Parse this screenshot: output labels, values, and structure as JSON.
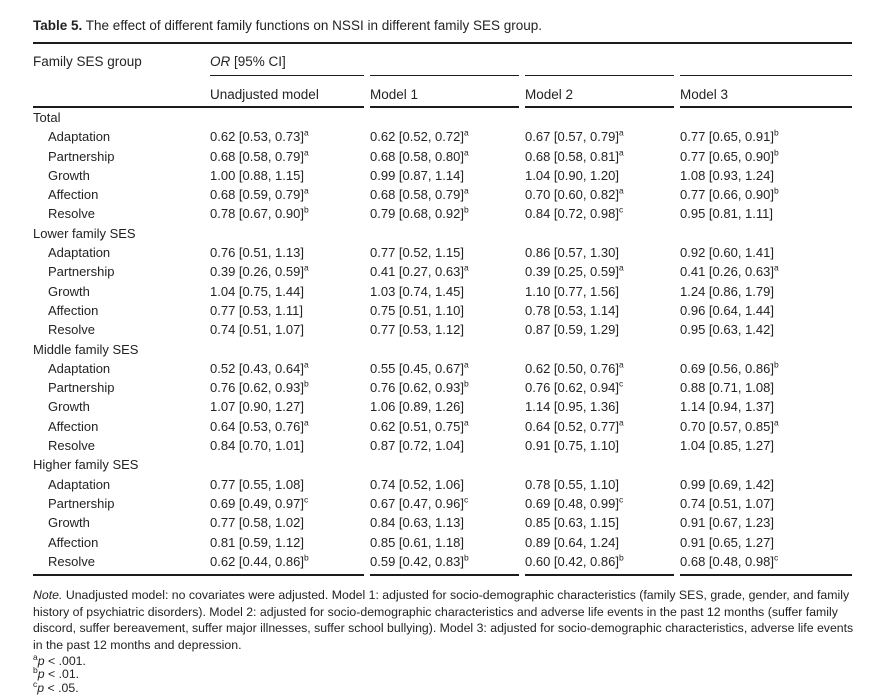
{
  "colors": {
    "text": "#232323",
    "rule": "#1c1c1c",
    "background": "#ffffff"
  },
  "title": {
    "label": "Table 5.",
    "text": "The effect of different family functions on NSSI in different family SES group."
  },
  "header": {
    "col1": "Family SES group",
    "span_italic": "OR",
    "span_rest": " [95% CI]",
    "models": [
      "Unadjusted model",
      "Model 1",
      "Model 2",
      "Model 3"
    ]
  },
  "groups": [
    {
      "name": "Total",
      "rows": [
        {
          "label": "Adaptation",
          "values": [
            "0.62 [0.53, 0.73]^a",
            "0.62 [0.52, 0.72]^a",
            "0.67 [0.57, 0.79]^a",
            "0.77 [0.65, 0.91]^b"
          ]
        },
        {
          "label": "Partnership",
          "values": [
            "0.68 [0.58, 0.79]^a",
            "0.68 [0.58, 0.80]^a",
            "0.68 [0.58, 0.81]^a",
            "0.77 [0.65, 0.90]^b"
          ]
        },
        {
          "label": "Growth",
          "values": [
            "1.00 [0.88, 1.15]^",
            "0.99 [0.87, 1.14]^",
            "1.04 [0.90, 1.20]^",
            "1.08 [0.93, 1.24]^"
          ]
        },
        {
          "label": "Affection",
          "values": [
            "0.68 [0.59, 0.79]^a",
            "0.68 [0.58, 0.79]^a",
            "0.70 [0.60, 0.82]^a",
            "0.77 [0.66, 0.90]^b"
          ]
        },
        {
          "label": "Resolve",
          "values": [
            "0.78 [0.67, 0.90]^b",
            "0.79 [0.68, 0.92]^b",
            "0.84 [0.72, 0.98]^c",
            "0.95 [0.81, 1.11]^"
          ]
        }
      ]
    },
    {
      "name": "Lower family SES",
      "rows": [
        {
          "label": "Adaptation",
          "values": [
            "0.76 [0.51, 1.13]^",
            "0.77 [0.52, 1.15]^",
            "0.86 [0.57, 1.30]^",
            "0.92 [0.60, 1.41]^"
          ]
        },
        {
          "label": "Partnership",
          "values": [
            "0.39 [0.26, 0.59]^a",
            "0.41 [0.27, 0.63]^a",
            "0.39 [0.25, 0.59]^a",
            "0.41 [0.26, 0.63]^a"
          ]
        },
        {
          "label": "Growth",
          "values": [
            "1.04 [0.75, 1.44]^",
            "1.03 [0.74, 1.45]^",
            "1.10 [0.77, 1.56]^",
            "1.24 [0.86, 1.79]^"
          ]
        },
        {
          "label": "Affection",
          "values": [
            "0.77 [0.53, 1.11]^",
            "0.75 [0.51, 1.10]^",
            "0.78 [0.53, 1.14]^",
            "0.96 [0.64, 1.44]^"
          ]
        },
        {
          "label": "Resolve",
          "values": [
            "0.74 [0.51, 1.07]^",
            "0.77 [0.53, 1.12]^",
            "0.87 [0.59, 1.29]^",
            "0.95 [0.63, 1.42]^"
          ]
        }
      ]
    },
    {
      "name": "Middle family SES",
      "rows": [
        {
          "label": "Adaptation",
          "values": [
            "0.52 [0.43, 0.64]^a",
            "0.55 [0.45, 0.67]^a",
            "0.62 [0.50, 0.76]^a",
            "0.69 [0.56, 0.86]^b"
          ]
        },
        {
          "label": "Partnership",
          "values": [
            "0.76 [0.62, 0.93]^b",
            "0.76 [0.62, 0.93]^b",
            "0.76 [0.62, 0.94]^c",
            "0.88 [0.71, 1.08]^"
          ]
        },
        {
          "label": "Growth",
          "values": [
            "1.07 [0.90, 1.27]^",
            "1.06 [0.89, 1.26]^",
            "1.14 [0.95, 1.36]^",
            "1.14 [0.94, 1.37]^"
          ]
        },
        {
          "label": "Affection",
          "values": [
            "0.64 [0.53, 0.76]^a",
            "0.62 [0.51, 0.75]^a",
            "0.64 [0.52, 0.77]^a",
            "0.70 [0.57, 0.85]^a"
          ]
        },
        {
          "label": "Resolve",
          "values": [
            "0.84 [0.70, 1.01]^",
            "0.87 [0.72, 1.04]^",
            "0.91 [0.75, 1.10]^",
            "1.04 [0.85, 1.27]^"
          ]
        }
      ]
    },
    {
      "name": "Higher family SES",
      "rows": [
        {
          "label": "Adaptation",
          "values": [
            "0.77 [0.55, 1.08]^",
            "0.74 [0.52, 1.06]^",
            "0.78 [0.55, 1.10]^",
            "0.99 [0.69, 1.42]^"
          ]
        },
        {
          "label": "Partnership",
          "values": [
            "0.69 [0.49, 0.97]^c",
            "0.67 [0.47, 0.96]^c",
            "0.69 [0.48, 0.99]^c",
            "0.74 [0.51, 1.07]^"
          ]
        },
        {
          "label": "Growth",
          "values": [
            "0.77 [0.58, 1.02]^",
            "0.84 [0.63, 1.13]^",
            "0.85 [0.63, 1.15]^",
            "0.91 [0.67, 1.23]^"
          ]
        },
        {
          "label": "Affection",
          "values": [
            "0.81 [0.59, 1.12]^",
            "0.85 [0.61, 1.18]^",
            "0.89 [0.64, 1.24]^",
            "0.91 [0.65, 1.27]^"
          ]
        },
        {
          "label": "Resolve",
          "values": [
            "0.62 [0.44, 0.86]^b",
            "0.59 [0.42, 0.83]^b",
            "0.60 [0.42, 0.86]^b",
            "0.68 [0.48, 0.98]^c"
          ]
        }
      ]
    }
  ],
  "note": {
    "label": "Note.",
    "text": "Unadjusted model: no covariates were adjusted. Model 1: adjusted for socio-demographic characteristics (family SES, grade, gender, and family history of psychiatric disorders). Model 2: adjusted for socio-demographic characteristics and adverse life events in the past 12 months (suffer family discord, suffer bereavement, suffer major illnesses, suffer school bullying). Model 3: adjusted for socio-demographic characteristics, adverse life events in the past 12 months and depression."
  },
  "footnotes": [
    {
      "sup": "a",
      "var": "p",
      "rest": "< .001."
    },
    {
      "sup": "b",
      "var": "p",
      "rest": "< .01."
    },
    {
      "sup": "c",
      "var": "p",
      "rest": "< .05."
    }
  ]
}
